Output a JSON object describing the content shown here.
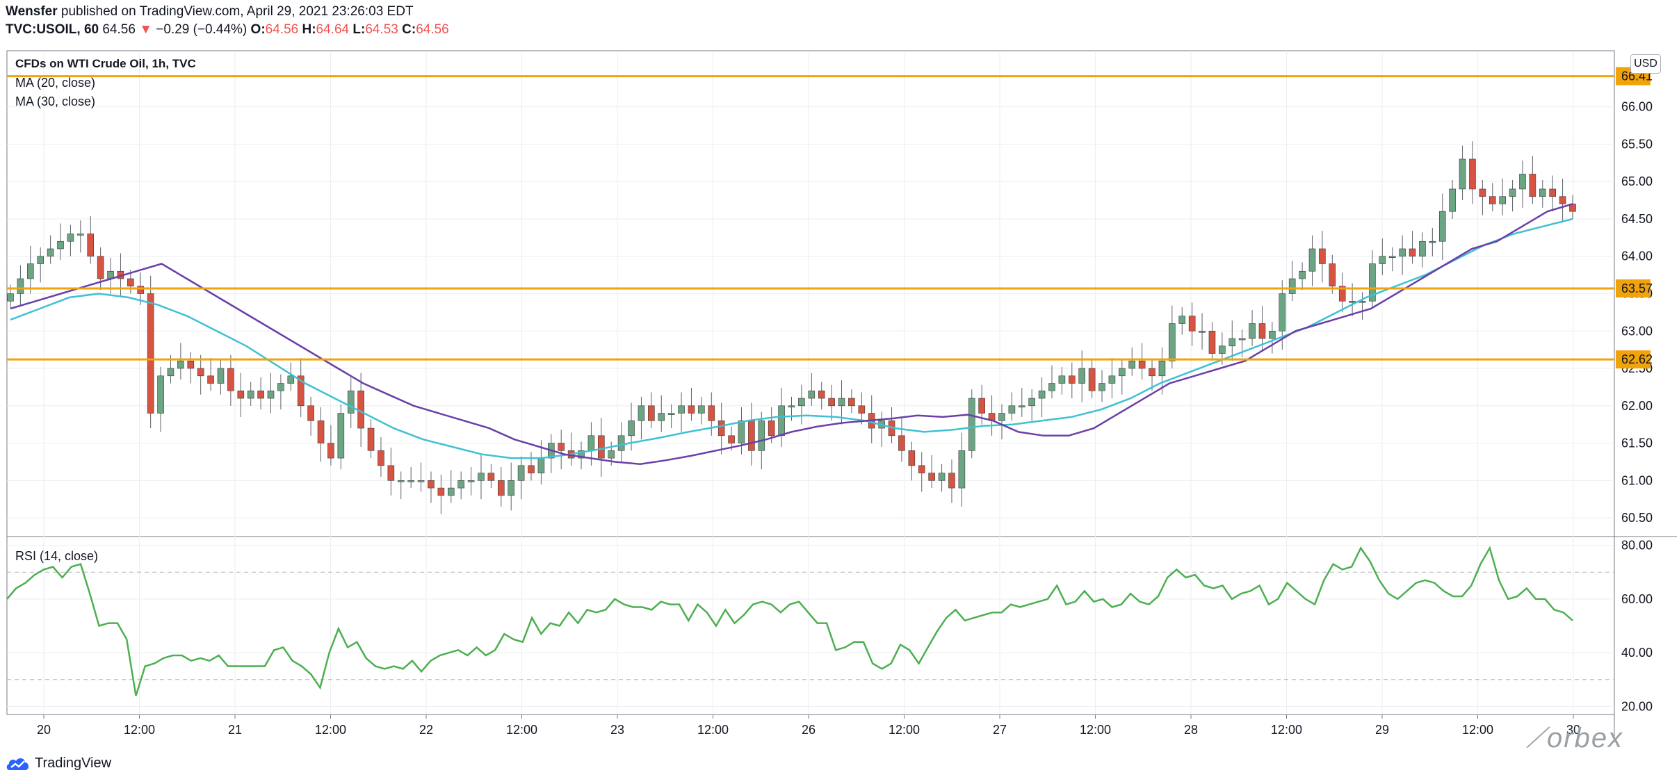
{
  "header": {
    "author": "Wensfer",
    "published_text": "published on TradingView.com, April 29, 2021 23:26:03 EDT",
    "symbol": "TVC:USOIL, 60",
    "last": "64.56",
    "change": "−0.29 (−0.44%)",
    "o_label": "O:",
    "o_value": "64.56",
    "h_label": "H:",
    "h_value": "64.64",
    "l_label": "L:",
    "l_value": "64.53",
    "c_label": "C:",
    "c_value": "64.56"
  },
  "legend": {
    "title": "CFDs on WTI Crude Oil, 1h, TVC",
    "ma20": "MA (20, close)",
    "ma30": "MA (30, close)",
    "rsi": "RSI (14, close)"
  },
  "currency": "USD",
  "brand": "TradingView",
  "watermark": "orbex",
  "colors": {
    "up": "#6ba583",
    "down": "#d75442",
    "ma20": "#6a3fa8",
    "ma30": "#3ec1d3",
    "rsi": "#4caf50",
    "level": "#f0a30a",
    "level_label_bg": "#f0a30a"
  },
  "chart_data": [
    {
      "type": "candlestick",
      "title": "CFDs on WTI Crude Oil, 1h, TVC",
      "x_tick_labels": [
        "20",
        "12:00",
        "21",
        "12:00",
        "22",
        "12:00",
        "23",
        "12:00",
        "26",
        "12:00",
        "27",
        "12:00",
        "28",
        "12:00",
        "29",
        "12:00",
        "30"
      ],
      "y_tick_labels": [
        "60.50",
        "61.00",
        "61.50",
        "62.00",
        "62.50",
        "63.00",
        "63.50",
        "64.00",
        "64.50",
        "65.00",
        "65.50",
        "66.00"
      ],
      "ylim": [
        60.25,
        66.75
      ],
      "horizontal_levels": [
        66.41,
        63.57,
        62.62
      ],
      "close_approx": [
        63.5,
        63.7,
        63.9,
        64.0,
        64.1,
        64.2,
        64.3,
        64.3,
        64.0,
        63.7,
        63.8,
        63.7,
        63.6,
        63.5,
        61.9,
        62.4,
        62.5,
        62.6,
        62.5,
        62.4,
        62.3,
        62.5,
        62.2,
        62.1,
        62.2,
        62.1,
        62.2,
        62.3,
        62.4,
        62.0,
        61.8,
        61.5,
        61.3,
        61.9,
        62.2,
        61.7,
        61.4,
        61.2,
        61.0,
        61.0,
        61.0,
        61.0,
        60.9,
        60.8,
        60.9,
        61.0,
        61.0,
        61.1,
        61.0,
        60.8,
        61.0,
        61.2,
        61.1,
        61.3,
        61.5,
        61.4,
        61.3,
        61.4,
        61.6,
        61.3,
        61.4,
        61.6,
        61.8,
        62.0,
        61.8,
        61.9,
        61.9,
        62.0,
        61.9,
        62.0,
        61.8,
        61.6,
        61.5,
        61.8,
        61.4,
        61.8,
        61.6,
        62.0,
        62.0,
        62.1,
        62.2,
        62.1,
        62.0,
        62.1,
        62.0,
        61.9,
        61.7,
        61.8,
        61.6,
        61.4,
        61.2,
        61.1,
        61.0,
        61.1,
        60.9,
        61.4,
        62.1,
        61.9,
        61.8,
        61.9,
        62.0,
        62.0,
        62.1,
        62.2,
        62.3,
        62.4,
        62.3,
        62.5,
        62.2,
        62.3,
        62.4,
        62.5,
        62.6,
        62.5,
        62.4,
        62.6,
        63.1,
        63.2,
        63.0,
        63.0,
        62.7,
        62.8,
        62.9,
        62.9,
        63.1,
        62.9,
        63.0,
        63.5,
        63.7,
        63.8,
        64.1,
        63.9,
        63.6,
        63.4,
        63.4,
        63.4,
        63.9,
        64.0,
        64.0,
        64.1,
        64.0,
        64.2,
        64.2,
        64.6,
        64.9,
        65.3,
        64.9,
        64.8,
        64.7,
        64.8,
        64.9,
        65.1,
        64.8,
        64.9,
        64.8,
        64.7,
        64.6
      ],
      "ma20_approx": [
        63.3,
        63.4,
        63.5,
        63.6,
        63.7,
        63.8,
        63.9,
        63.7,
        63.5,
        63.3,
        63.1,
        62.9,
        62.7,
        62.5,
        62.3,
        62.15,
        62.0,
        61.9,
        61.8,
        61.7,
        61.55,
        61.45,
        61.35,
        61.3,
        61.25,
        61.22,
        61.27,
        61.33,
        61.4,
        61.47,
        61.55,
        61.65,
        61.72,
        61.77,
        61.8,
        61.83,
        61.87,
        61.85,
        61.88,
        61.8,
        61.65,
        61.6,
        61.6,
        61.7,
        61.9,
        62.1,
        62.3,
        62.4,
        62.5,
        62.6,
        62.8,
        63.0,
        63.1,
        63.2,
        63.3,
        63.5,
        63.7,
        63.9,
        64.1,
        64.2,
        64.4,
        64.6,
        64.7
      ],
      "ma30_approx": [
        63.15,
        63.3,
        63.45,
        63.5,
        63.45,
        63.35,
        63.2,
        63.0,
        62.8,
        62.55,
        62.3,
        62.1,
        61.9,
        61.7,
        61.55,
        61.45,
        61.35,
        61.3,
        61.3,
        61.35,
        61.42,
        61.5,
        61.57,
        61.65,
        61.72,
        61.8,
        61.85,
        61.87,
        61.85,
        61.8,
        61.7,
        61.65,
        61.68,
        61.73,
        61.75,
        61.8,
        61.85,
        61.95,
        62.1,
        62.3,
        62.45,
        62.6,
        62.75,
        62.9,
        63.05,
        63.25,
        63.45,
        63.6,
        63.75,
        63.95,
        64.15,
        64.3,
        64.4,
        64.5
      ]
    },
    {
      "type": "line",
      "title": "RSI (14, close)",
      "y_tick_labels": [
        "20.00",
        "40.00",
        "60.00",
        "80.00"
      ],
      "ylim": [
        17,
        83
      ],
      "guide_levels": [
        70,
        30
      ],
      "values": [
        60,
        64,
        66,
        69,
        71,
        72,
        68,
        72,
        73,
        62,
        50,
        51,
        51,
        45,
        24,
        35,
        36,
        38,
        39,
        39,
        37,
        38,
        37,
        39,
        35,
        35,
        35,
        35,
        35,
        41,
        42,
        37,
        35,
        32,
        27,
        40,
        49,
        42,
        44,
        38,
        35,
        34,
        35,
        34,
        37,
        33,
        37,
        39,
        40,
        41,
        39,
        42,
        39,
        41,
        47,
        45,
        44,
        53,
        47,
        51,
        50,
        55,
        51,
        56,
        55,
        56,
        60,
        58,
        57,
        57,
        56,
        59,
        58,
        58,
        52,
        58,
        55,
        50,
        56,
        51,
        54,
        58,
        59,
        58,
        55,
        58,
        59,
        55,
        51,
        51,
        41,
        42,
        44,
        44,
        36,
        34,
        36,
        43,
        41,
        36,
        42,
        48,
        53,
        56,
        52,
        53,
        54,
        55,
        55,
        58,
        57,
        58,
        59,
        60,
        65,
        58,
        59,
        63,
        59,
        60,
        57,
        58,
        62,
        59,
        58,
        61,
        68,
        71,
        68,
        69,
        65,
        64,
        65,
        60,
        62,
        63,
        65,
        58,
        60,
        66,
        63,
        60,
        58,
        67,
        73,
        71,
        72,
        79,
        74,
        67,
        62,
        60,
        63,
        66,
        67,
        66,
        63,
        61,
        61,
        65,
        73,
        79,
        67,
        60,
        61,
        64,
        60,
        60,
        56,
        55,
        52
      ],
      "x_tick_labels": [
        "20",
        "12:00",
        "21",
        "12:00",
        "22",
        "12:00",
        "23",
        "12:00",
        "26",
        "12:00",
        "27",
        "12:00",
        "28",
        "12:00",
        "29",
        "12:00",
        "30"
      ]
    }
  ]
}
